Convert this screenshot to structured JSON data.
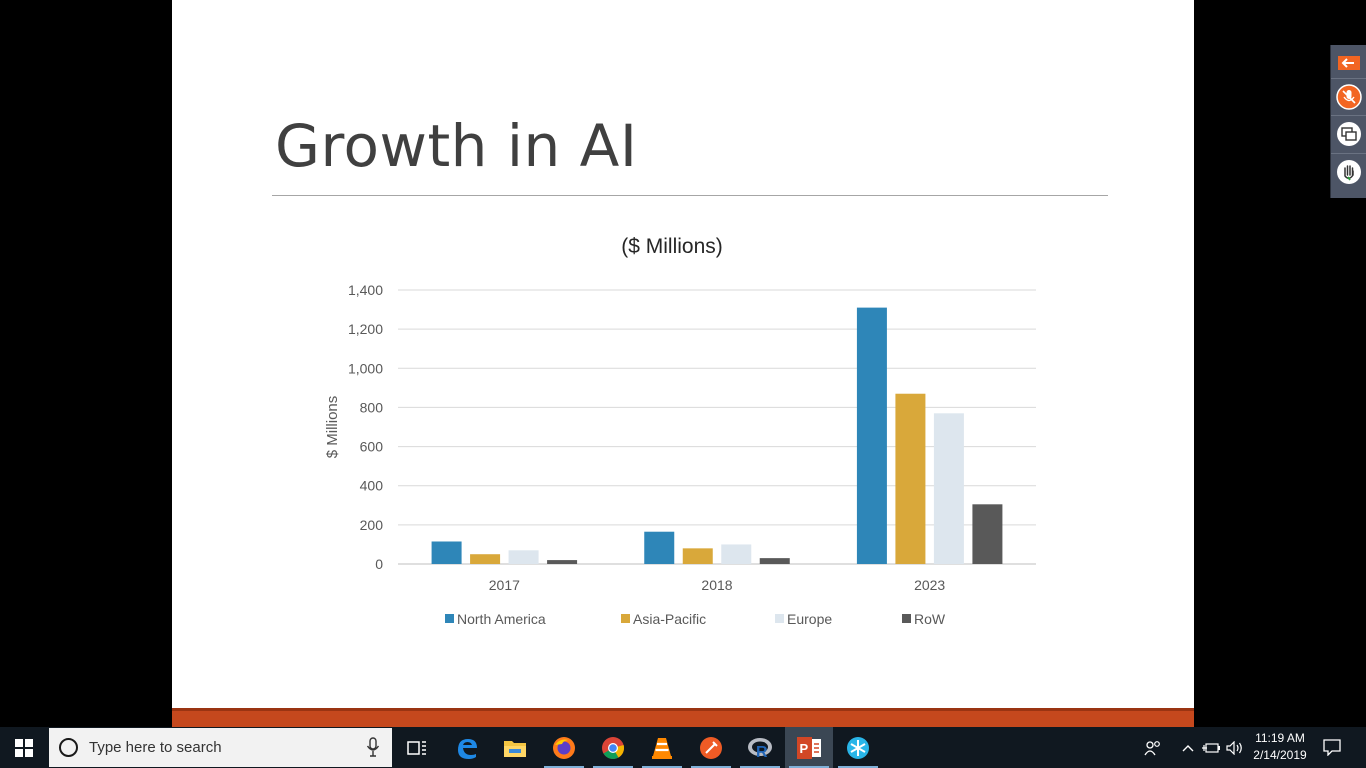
{
  "slide": {
    "title": "Growth in AI",
    "accent_color": "#c5481d"
  },
  "chart_data": {
    "type": "bar",
    "title": "($ Millions)",
    "xlabel": "",
    "ylabel": "$ Millions",
    "categories": [
      "2017",
      "2018",
      "2023"
    ],
    "ylim": [
      0,
      1400
    ],
    "yticks": [
      0,
      200,
      400,
      600,
      800,
      1000,
      1200,
      1400
    ],
    "ytick_labels": [
      "0",
      "200",
      "400",
      "600",
      "800",
      "1,000",
      "1,200",
      "1,400"
    ],
    "grid": true,
    "legend_position": "bottom",
    "series": [
      {
        "name": "North America",
        "color": "#2e86b8",
        "values": [
          115,
          165,
          1310
        ]
      },
      {
        "name": "Asia-Pacific",
        "color": "#d9a83a",
        "values": [
          50,
          80,
          870
        ]
      },
      {
        "name": "Europe",
        "color": "#dde6ee",
        "values": [
          70,
          100,
          770
        ]
      },
      {
        "name": "RoW",
        "color": "#595959",
        "values": [
          20,
          30,
          305
        ]
      }
    ]
  },
  "toolbar": {
    "buttons": [
      {
        "name": "back-arrow-icon",
        "color": "#f26522"
      },
      {
        "name": "mic-mute-icon",
        "color": "#f26522"
      },
      {
        "name": "screen-share-icon",
        "color": "#ffffff"
      },
      {
        "name": "raise-hand-icon",
        "color": "#ffffff"
      }
    ]
  },
  "taskbar": {
    "search_placeholder": "Type here to search",
    "apps": [
      "task-view-icon",
      "edge-icon",
      "file-explorer-icon",
      "firefox-icon",
      "chrome-icon",
      "vlc-icon",
      "postman-icon",
      "r-icon",
      "powerpoint-icon",
      "snowflake-app-icon"
    ],
    "clock_time": "11:19 AM",
    "clock_date": "2/14/2019"
  }
}
